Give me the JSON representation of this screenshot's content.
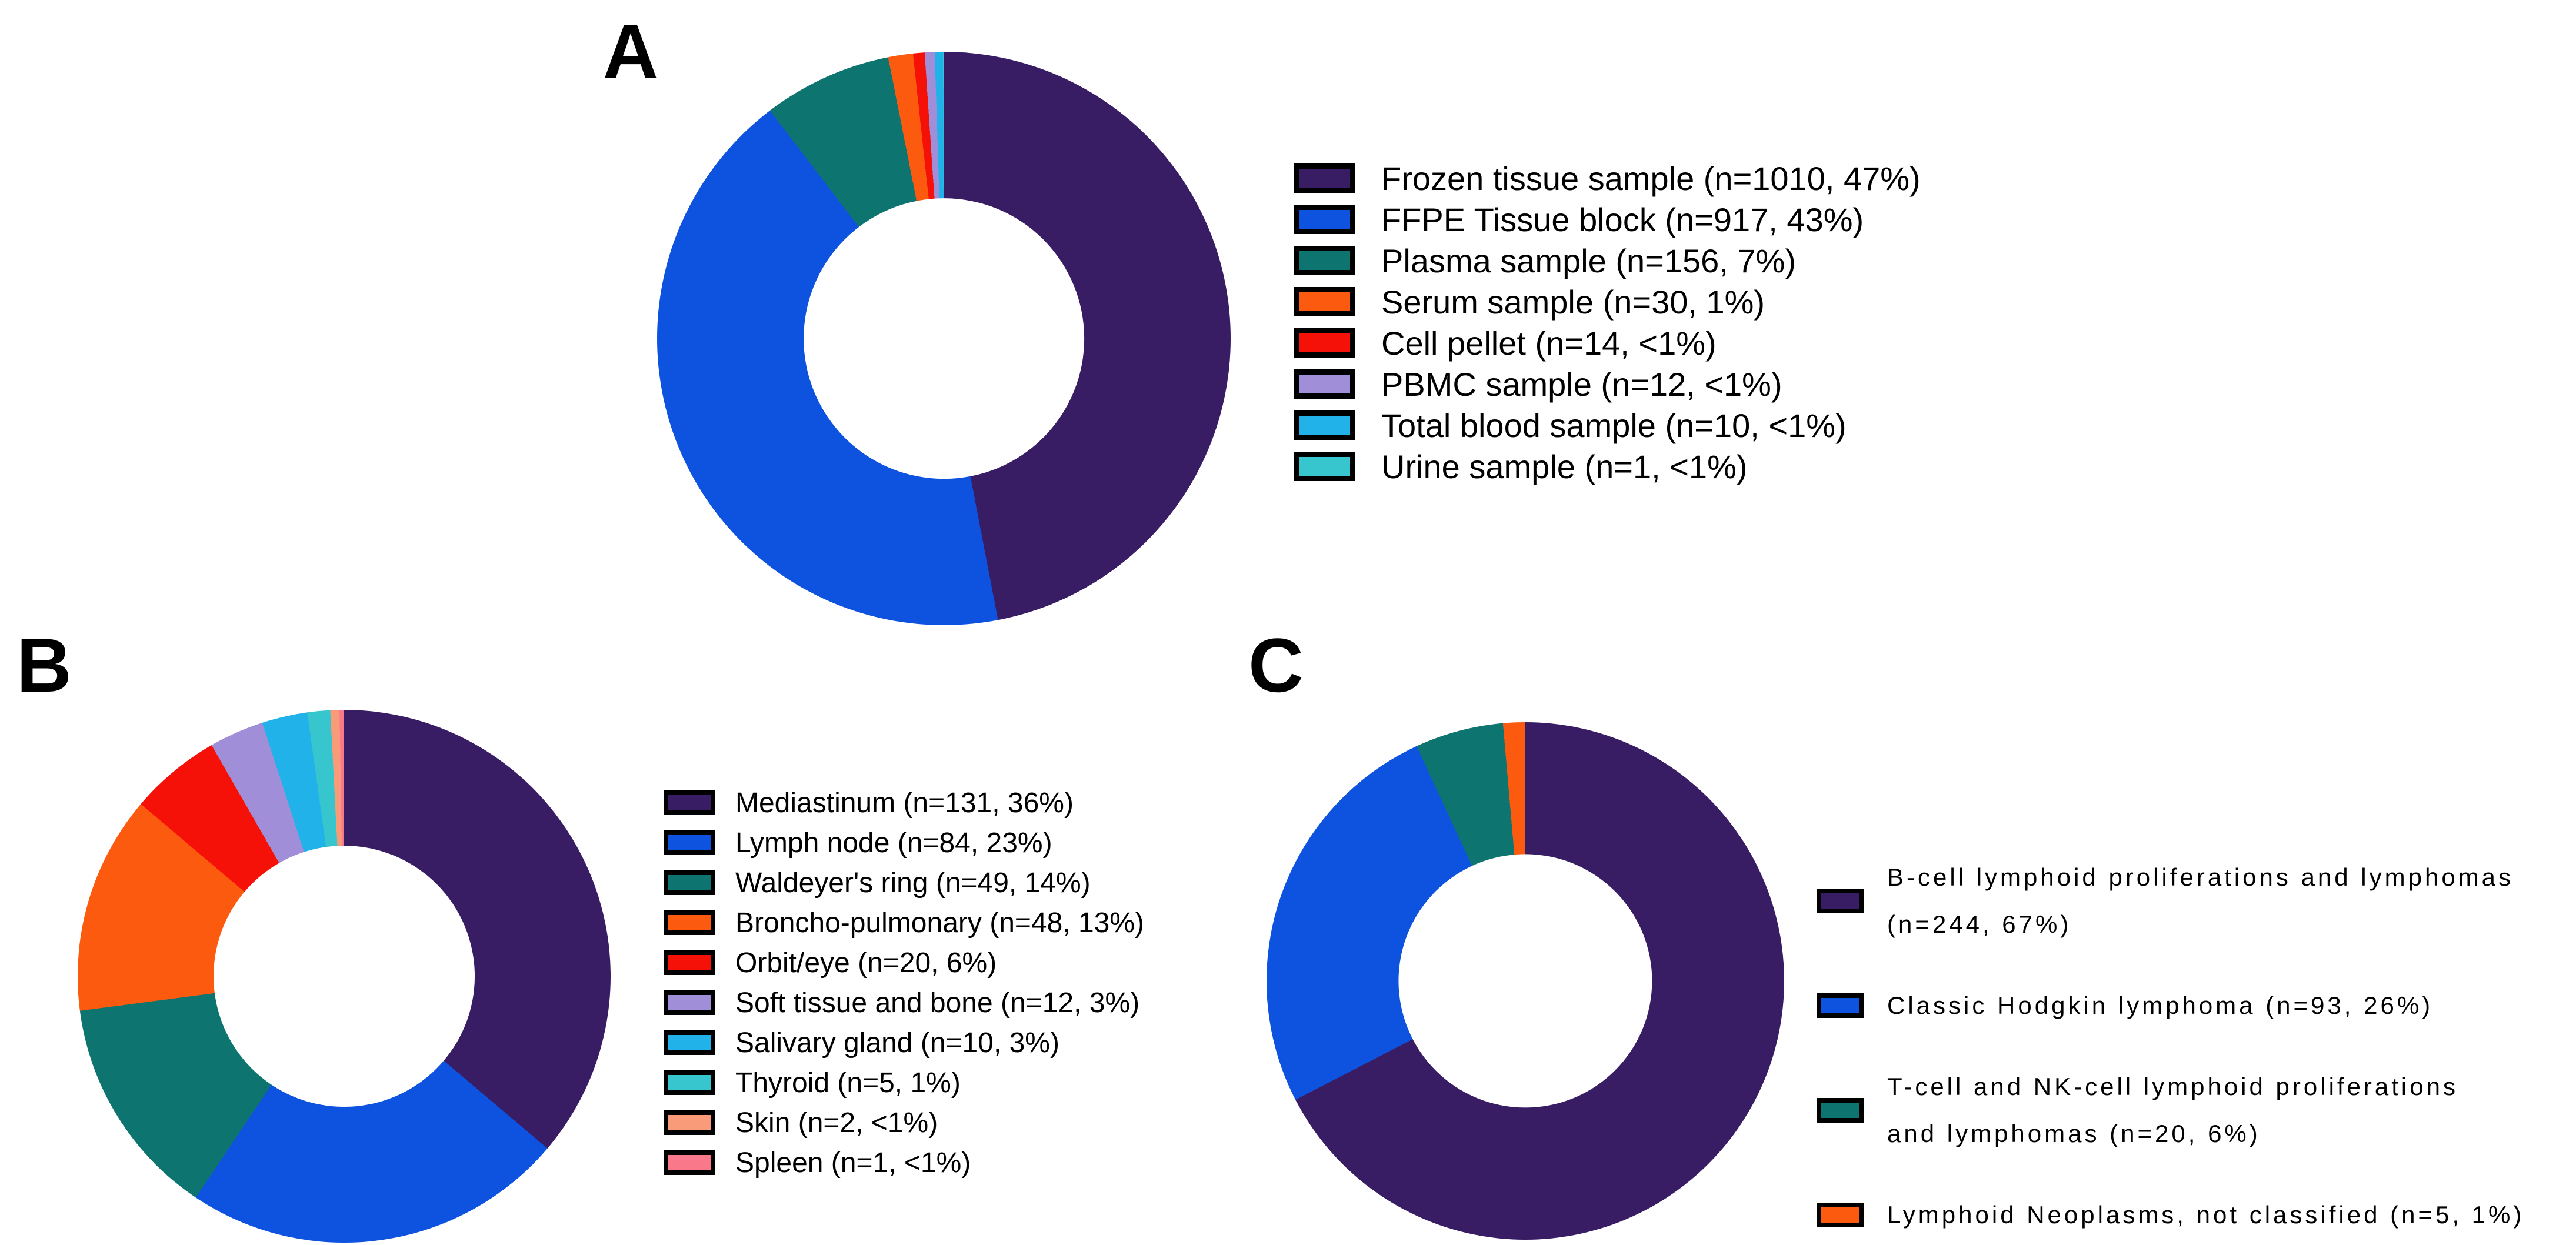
{
  "figure": {
    "background": "#FFFFFF",
    "text_color": "#000000"
  },
  "panels": [
    {
      "label": "A"
    },
    {
      "label": "B"
    },
    {
      "label": "C"
    }
  ],
  "chart_data": [
    {
      "type": "pie",
      "subtype": "donut",
      "panel": "A",
      "hole_ratio": 0.49,
      "start_angle_deg": 0,
      "direction": "clockwise",
      "legend_position": "right",
      "total": 2150,
      "series": [
        {
          "label": "Frozen tissue sample",
          "n": 1010,
          "percent_label": "47%",
          "value": 1010,
          "color": "#381D64",
          "legend_lines": [
            "Frozen tissue sample (n=1010, 47%)"
          ]
        },
        {
          "label": "FFPE Tissue block",
          "n": 917,
          "percent_label": "43%",
          "value": 917,
          "color": "#0E52E0",
          "legend_lines": [
            "FFPE Tissue block (n=917, 43%)"
          ]
        },
        {
          "label": "Plasma sample",
          "n": 156,
          "percent_label": "7%",
          "value": 156,
          "color": "#0E7470",
          "legend_lines": [
            "Plasma sample (n=156, 7%)"
          ]
        },
        {
          "label": "Serum sample",
          "n": 30,
          "percent_label": "1%",
          "value": 30,
          "color": "#FB5A0F",
          "legend_lines": [
            "Serum sample (n=30, 1%)"
          ]
        },
        {
          "label": "Cell pellet",
          "n": 14,
          "percent_label": "<1%",
          "value": 14,
          "color": "#F51108",
          "legend_lines": [
            "Cell pellet (n=14, <1%)"
          ]
        },
        {
          "label": "PBMC sample",
          "n": 12,
          "percent_label": "<1%",
          "value": 12,
          "color": "#A08FD8",
          "legend_lines": [
            "PBMC sample (n=12, <1%)"
          ]
        },
        {
          "label": "Total blood sample",
          "n": 10,
          "percent_label": "<1%",
          "value": 10,
          "color": "#20B2E8",
          "legend_lines": [
            "Total blood sample (n=10, <1%)"
          ]
        },
        {
          "label": "Urine sample",
          "n": 1,
          "percent_label": "<1%",
          "value": 1,
          "color": "#38C6CE",
          "legend_lines": [
            "Urine sample (n=1, <1%)"
          ]
        }
      ]
    },
    {
      "type": "pie",
      "subtype": "donut",
      "panel": "B",
      "hole_ratio": 0.49,
      "start_angle_deg": 0,
      "direction": "clockwise",
      "legend_position": "right",
      "total": 362,
      "series": [
        {
          "label": "Mediastinum",
          "n": 131,
          "percent_label": "36%",
          "value": 131,
          "color": "#381D64",
          "legend_lines": [
            "Mediastinum (n=131, 36%)"
          ]
        },
        {
          "label": "Lymph node",
          "n": 84,
          "percent_label": "23%",
          "value": 84,
          "color": "#0E52E0",
          "legend_lines": [
            "Lymph node (n=84, 23%)"
          ]
        },
        {
          "label": "Waldeyer's ring",
          "n": 49,
          "percent_label": "14%",
          "value": 49,
          "color": "#0E7470",
          "legend_lines": [
            "Waldeyer's ring (n=49, 14%)"
          ]
        },
        {
          "label": "Broncho-pulmonary",
          "n": 48,
          "percent_label": "13%",
          "value": 48,
          "color": "#FB5A0F",
          "legend_lines": [
            "Broncho-pulmonary (n=48, 13%)"
          ]
        },
        {
          "label": "Orbit/eye",
          "n": 20,
          "percent_label": "6%",
          "value": 20,
          "color": "#F51108",
          "legend_lines": [
            "Orbit/eye (n=20, 6%)"
          ]
        },
        {
          "label": "Soft tissue and bone",
          "n": 12,
          "percent_label": "3%",
          "value": 12,
          "color": "#A08FD8",
          "legend_lines": [
            "Soft tissue and bone (n=12, 3%)"
          ]
        },
        {
          "label": "Salivary gland",
          "n": 10,
          "percent_label": "3%",
          "value": 10,
          "color": "#20B2E8",
          "legend_lines": [
            "Salivary gland (n=10, 3%)"
          ]
        },
        {
          "label": "Thyroid",
          "n": 5,
          "percent_label": "1%",
          "value": 5,
          "color": "#38C6CE",
          "legend_lines": [
            "Thyroid (n=5, 1%)"
          ]
        },
        {
          "label": "Skin",
          "n": 2,
          "percent_label": "<1%",
          "value": 2,
          "color": "#F99A78",
          "legend_lines": [
            "Skin (n=2, <1%)"
          ]
        },
        {
          "label": "Spleen",
          "n": 1,
          "percent_label": "<1%",
          "value": 1,
          "color": "#F9798A",
          "legend_lines": [
            "Spleen (n=1, <1%)"
          ]
        }
      ]
    },
    {
      "type": "pie",
      "subtype": "donut",
      "panel": "C",
      "hole_ratio": 0.49,
      "start_angle_deg": 0,
      "direction": "clockwise",
      "legend_position": "right",
      "total": 362,
      "series": [
        {
          "label": "B-cell lymphoid proliferations and lymphomas",
          "n": 244,
          "percent_label": "67%",
          "value": 244,
          "color": "#381D64",
          "legend_lines": [
            "B-cell lymphoid proliferations and lymphomas",
            "(n=244, 67%)"
          ]
        },
        {
          "label": "Classic Hodgkin lymphoma",
          "n": 93,
          "percent_label": "26%",
          "value": 93,
          "color": "#0E52E0",
          "legend_lines": [
            "Classic Hodgkin lymphoma (n=93, 26%)"
          ]
        },
        {
          "label": "T-cell and NK-cell lymphoid proliferations and lymphomas",
          "n": 20,
          "percent_label": "6%",
          "value": 20,
          "color": "#0E7470",
          "legend_lines": [
            "T-cell and NK-cell lymphoid proliferations",
            "and lymphomas (n=20, 6%)"
          ]
        },
        {
          "label": "Lymphoid Neoplasms, not classified",
          "n": 5,
          "percent_label": "1%",
          "value": 5,
          "color": "#FB5A0F",
          "legend_lines": [
            "Lymphoid Neoplasms, not classified (n=5, 1%)"
          ]
        }
      ]
    }
  ]
}
